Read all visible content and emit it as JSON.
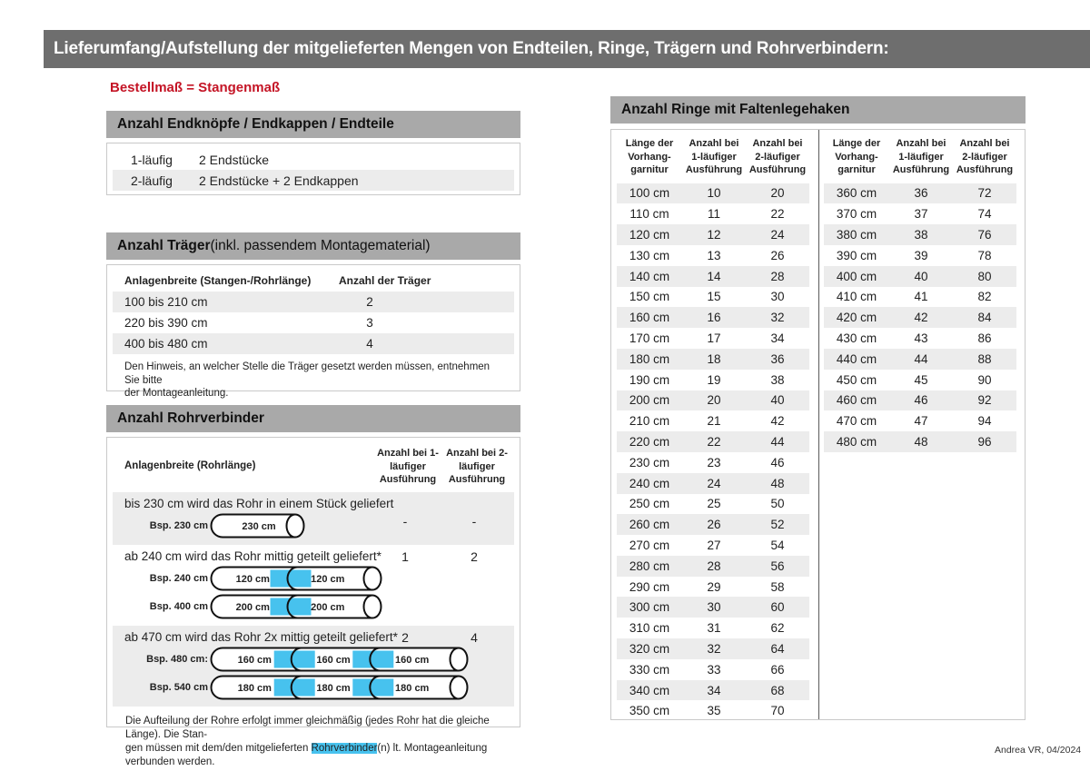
{
  "header": {
    "title": "Lieferumfang/Aufstellung der mitgelieferten Mengen von Endteilen, Ringe, Trägern und Rohrverbindern:"
  },
  "left": {
    "red_note": "Bestellmaß = Stangenmaß",
    "endteile": {
      "title": "Anzahl Endknöpfe / Endkappen / Endteile",
      "rows": [
        {
          "type": "1-läufig",
          "parts": "2 Endstücke"
        },
        {
          "type": "2-läufig",
          "parts": "2 Endstücke + 2 Endkappen"
        }
      ]
    },
    "traeger": {
      "title": "Anzahl Träger",
      "title_suffix": " (inkl. passendem Montagematerial)",
      "col1": "Anlagenbreite (Stangen-/Rohrlänge)",
      "col2": "Anzahl der Träger",
      "rows": [
        {
          "range": "100 bis 210 cm",
          "count": "2"
        },
        {
          "range": "220 bis 390 cm",
          "count": "3"
        },
        {
          "range": "400 bis 480 cm",
          "count": "4"
        }
      ],
      "note_line1": "Den Hinweis, an welcher Stelle die Träger gesetzt werden müssen, entnehmen Sie bitte",
      "note_line2": "der Montageanleitung."
    },
    "rohrverbinder": {
      "title": "Anzahl Rohrverbinder",
      "col1": "Anlagenbreite (Rohrlänge)",
      "col2": "Anzahl bei 1-läufiger Ausführung",
      "col3": "Anzahl bei 2-läufiger Ausführung",
      "groups": [
        {
          "text": "bis 230 cm wird das Rohr in einem Stück geliefert",
          "val1": "-",
          "val2": "-",
          "examples": [
            {
              "label": "Bsp. 230 cm",
              "segments": [
                "230 cm"
              ]
            }
          ]
        },
        {
          "text": "ab 240 cm wird das Rohr mittig geteilt geliefert*",
          "val1": "1",
          "val2": "2",
          "examples": [
            {
              "label": "Bsp. 240 cm",
              "segments": [
                "120 cm",
                "120 cm"
              ]
            },
            {
              "label": "Bsp. 400 cm",
              "segments": [
                "200 cm",
                "200 cm"
              ]
            }
          ]
        },
        {
          "text": "ab 470 cm wird das Rohr 2x mittig geteilt geliefert*",
          "val1": "2",
          "val2": "4",
          "examples": [
            {
              "label": "Bsp. 480 cm:",
              "segments": [
                "160 cm",
                "160 cm",
                "160 cm"
              ]
            },
            {
              "label": "Bsp. 540 cm",
              "segments": [
                "180 cm",
                "180 cm",
                "180 cm"
              ]
            }
          ]
        }
      ],
      "footnote": {
        "line1": "Die Aufteilung der Rohre erfolgt immer gleichmäßig (jedes Rohr hat die gleiche Länge). Die Stan-",
        "line2_before": "gen müssen mit dem/den mitgelieferten ",
        "highlight": "Rohrverbinder",
        "line2_after": "(n) lt. Montageanleitung verbunden werden."
      }
    }
  },
  "right": {
    "title": "Anzahl Ringe mit Faltenlegehaken",
    "header_cols": [
      [
        "Länge der",
        "Vorhang-",
        "garnitur"
      ],
      [
        "Anzahl bei",
        "1-läufiger",
        "Ausführung"
      ],
      [
        "Anzahl bei",
        "2-läufiger",
        "Ausführung"
      ]
    ],
    "tables": [
      {
        "rows": [
          [
            "100 cm",
            "10",
            "20"
          ],
          [
            "110 cm",
            "11",
            "22"
          ],
          [
            "120 cm",
            "12",
            "24"
          ],
          [
            "130 cm",
            "13",
            "26"
          ],
          [
            "140 cm",
            "14",
            "28"
          ],
          [
            "150 cm",
            "15",
            "30"
          ],
          [
            "160 cm",
            "16",
            "32"
          ],
          [
            "170 cm",
            "17",
            "34"
          ],
          [
            "180 cm",
            "18",
            "36"
          ],
          [
            "190 cm",
            "19",
            "38"
          ],
          [
            "200 cm",
            "20",
            "40"
          ],
          [
            "210 cm",
            "21",
            "42"
          ],
          [
            "220 cm",
            "22",
            "44"
          ],
          [
            "230 cm",
            "23",
            "46"
          ],
          [
            "240 cm",
            "24",
            "48"
          ],
          [
            "250 cm",
            "25",
            "50"
          ],
          [
            "260 cm",
            "26",
            "52"
          ],
          [
            "270 cm",
            "27",
            "54"
          ],
          [
            "280 cm",
            "28",
            "56"
          ],
          [
            "290 cm",
            "29",
            "58"
          ],
          [
            "300 cm",
            "30",
            "60"
          ],
          [
            "310 cm",
            "31",
            "62"
          ],
          [
            "320 cm",
            "32",
            "64"
          ],
          [
            "330 cm",
            "33",
            "66"
          ],
          [
            "340 cm",
            "34",
            "68"
          ],
          [
            "350 cm",
            "35",
            "70"
          ]
        ]
      },
      {
        "rows": [
          [
            "360 cm",
            "36",
            "72"
          ],
          [
            "370 cm",
            "37",
            "74"
          ],
          [
            "380 cm",
            "38",
            "76"
          ],
          [
            "390 cm",
            "39",
            "78"
          ],
          [
            "400 cm",
            "40",
            "80"
          ],
          [
            "410 cm",
            "41",
            "82"
          ],
          [
            "420 cm",
            "42",
            "84"
          ],
          [
            "430 cm",
            "43",
            "86"
          ],
          [
            "440 cm",
            "44",
            "88"
          ],
          [
            "450 cm",
            "45",
            "90"
          ],
          [
            "460 cm",
            "46",
            "92"
          ],
          [
            "470 cm",
            "47",
            "94"
          ],
          [
            "480 cm",
            "48",
            "96"
          ]
        ]
      }
    ]
  },
  "footer": {
    "credit": "Andrea VR, 04/2024"
  },
  "colors": {
    "topbar_gray": "#6e6e6e",
    "section_header_gray": "#a9a9a9",
    "row_alt_gray": "#ececec",
    "accent_red": "#c41425",
    "connector_blue": "#47c2ee",
    "border_gray": "#c9c9c9"
  }
}
